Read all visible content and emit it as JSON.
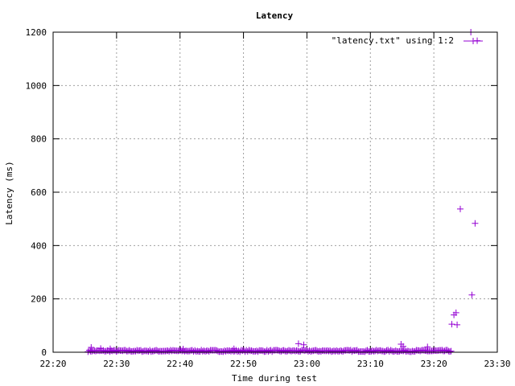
{
  "chart_data": {
    "type": "scatter",
    "title": "Latency",
    "xlabel": "Time during test",
    "ylabel": "Latency (ms)",
    "legend": "top-right",
    "grid": true,
    "marker": "+",
    "color": "#9400d3",
    "x_unit": "HH:MM (time of day)",
    "xlim": [
      "22:20",
      "23:30"
    ],
    "ylim": [
      0,
      1200
    ],
    "x_ticks": [
      "22:20",
      "22:30",
      "22:40",
      "22:50",
      "23:00",
      "23:10",
      "23:20",
      "23:30"
    ],
    "y_ticks": [
      0,
      200,
      400,
      600,
      800,
      1000,
      1200
    ],
    "series": [
      {
        "name": "\"latency.txt\" using 1:2",
        "baseline": {
          "x_start": "22:25:30",
          "x_end": "23:22:50",
          "y_range": [
            2,
            8
          ]
        },
        "points": [
          {
            "x": "22:26:00",
            "y": 18
          },
          {
            "x": "22:27:30",
            "y": 14
          },
          {
            "x": "22:29:00",
            "y": 13
          },
          {
            "x": "22:40:30",
            "y": 12
          },
          {
            "x": "22:48:30",
            "y": 13
          },
          {
            "x": "22:58:40",
            "y": 32
          },
          {
            "x": "22:59:30",
            "y": 28
          },
          {
            "x": "23:14:50",
            "y": 30
          },
          {
            "x": "23:15:10",
            "y": 22
          },
          {
            "x": "23:19:00",
            "y": 20
          },
          {
            "x": "23:22:50",
            "y": 105
          },
          {
            "x": "23:23:10",
            "y": 140
          },
          {
            "x": "23:23:30",
            "y": 148
          },
          {
            "x": "23:23:40",
            "y": 103
          },
          {
            "x": "23:24:10",
            "y": 537
          },
          {
            "x": "23:25:50",
            "y": 1200
          },
          {
            "x": "23:26:00",
            "y": 215
          },
          {
            "x": "23:26:30",
            "y": 483
          },
          {
            "x": "23:26:50",
            "y": 1168
          }
        ]
      }
    ]
  }
}
